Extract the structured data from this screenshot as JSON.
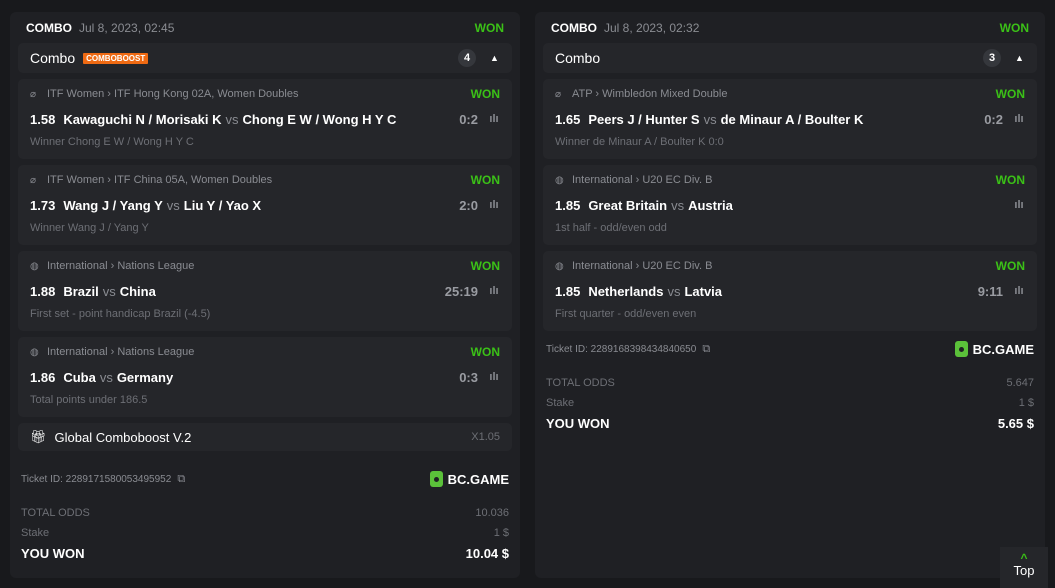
{
  "tickets": [
    {
      "type": "COMBO",
      "date": "Jul 8, 2023, 02:45",
      "status": "WON",
      "group_label": "Combo",
      "badge": "COMBOBOOST",
      "count": "4",
      "legs": [
        {
          "sport_icon": "tennis-icon",
          "league": "ITF Women › ITF Hong Kong 02A, Women Doubles",
          "status": "WON",
          "odds": "1.58",
          "home": "Kawaguchi N / Morisaki K",
          "vs": "vs",
          "away": "Chong E W / Wong H Y C",
          "score": "0:2",
          "selection": "Winner Chong E W / Wong H Y C"
        },
        {
          "sport_icon": "tennis-icon",
          "league": "ITF Women › ITF China 05A, Women Doubles",
          "status": "WON",
          "odds": "1.73",
          "home": "Wang J / Yang Y",
          "vs": "vs",
          "away": "Liu Y / Yao X",
          "score": "2:0",
          "selection": "Winner Wang J / Yang Y"
        },
        {
          "sport_icon": "volleyball-icon",
          "league": "International › Nations League",
          "status": "WON",
          "odds": "1.88",
          "home": "Brazil",
          "vs": "vs",
          "away": "China",
          "score": "25:19",
          "selection": "First set - point handicap Brazil (-4.5)"
        },
        {
          "sport_icon": "volleyball-icon",
          "league": "International › Nations League",
          "status": "WON",
          "odds": "1.86",
          "home": "Cuba",
          "vs": "vs",
          "away": "Germany",
          "score": "0:3",
          "selection": "Total points under 186.5"
        }
      ],
      "boost": {
        "label": "Global Comboboost V.2",
        "multiplier": "X1.05"
      },
      "ticket_id": "Ticket ID: 2289171580053495952",
      "brand": "BC.GAME",
      "total_odds_label": "TOTAL ODDS",
      "total_odds": "10.036",
      "stake_label": "Stake",
      "stake": "1 $",
      "won_label": "YOU WON",
      "won": "10.04 $"
    },
    {
      "type": "COMBO",
      "date": "Jul 8, 2023, 02:32",
      "status": "WON",
      "group_label": "Combo",
      "count": "3",
      "legs": [
        {
          "sport_icon": "tennis-icon",
          "league": "ATP › Wimbledon Mixed Double",
          "status": "WON",
          "odds": "1.65",
          "home": "Peers J / Hunter S",
          "vs": "vs",
          "away": "de Minaur A / Boulter K",
          "score": "0:2",
          "selection": "Winner de Minaur A / Boulter K  0:0"
        },
        {
          "sport_icon": "basketball-icon",
          "league": "International › U20 EC Div. B",
          "status": "WON",
          "odds": "1.85",
          "home": "Great Britain",
          "vs": "vs",
          "away": "Austria",
          "score": "",
          "selection": "1st half - odd/even odd"
        },
        {
          "sport_icon": "basketball-icon",
          "league": "International › U20 EC Div. B",
          "status": "WON",
          "odds": "1.85",
          "home": "Netherlands",
          "vs": "vs",
          "away": "Latvia",
          "score": "9:11",
          "selection": "First quarter - odd/even even"
        }
      ],
      "ticket_id": "Ticket ID: 2289168398434840650",
      "brand": "BC.GAME",
      "total_odds_label": "TOTAL ODDS",
      "total_odds": "5.647",
      "stake_label": "Stake",
      "stake": "1 $",
      "won_label": "YOU WON",
      "won": "5.65 $"
    }
  ],
  "top_button": "Top",
  "colors": {
    "won": "#3bc117",
    "badge": "#ef6a13",
    "brand": "#5bc13a"
  }
}
